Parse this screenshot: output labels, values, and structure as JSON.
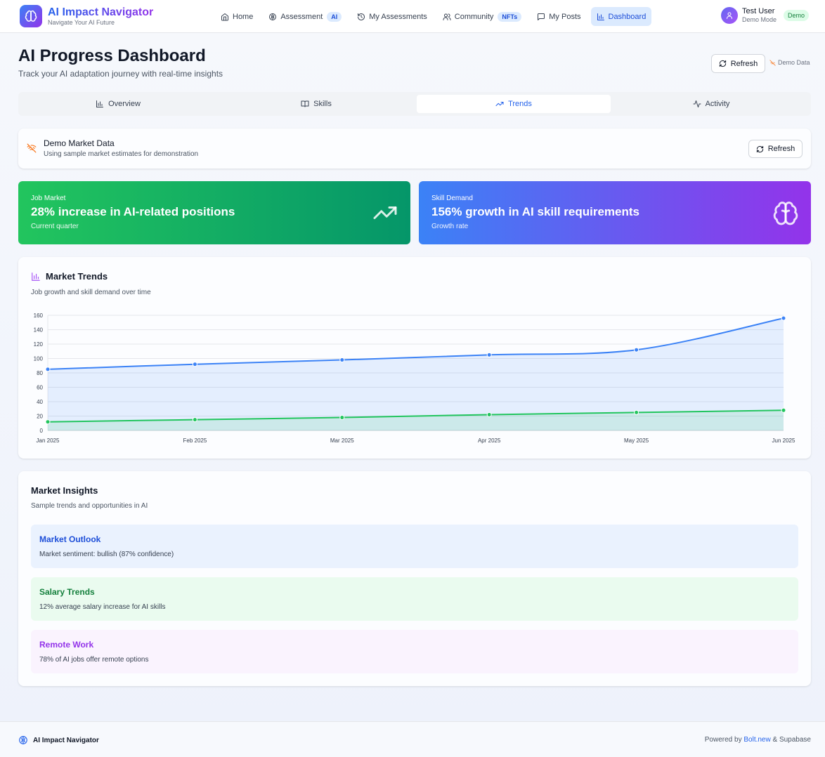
{
  "header": {
    "title": "AI Impact Navigator",
    "subtitle": "Navigate Your AI Future",
    "nav": [
      {
        "label": "Home",
        "icon": "home-icon"
      },
      {
        "label": "Assessment",
        "icon": "brain-icon",
        "badge": "AI"
      },
      {
        "label": "My Assessments",
        "icon": "history-icon"
      },
      {
        "label": "Community",
        "icon": "users-icon",
        "badge": "NFTs"
      },
      {
        "label": "My Posts",
        "icon": "message-icon"
      },
      {
        "label": "Dashboard",
        "icon": "bar-chart-icon",
        "active": true
      }
    ],
    "user": {
      "name": "Test User",
      "mode": "Demo Mode",
      "badge": "Demo"
    }
  },
  "page": {
    "title": "AI Progress Dashboard",
    "subtitle": "Track your AI adaptation journey with real-time insights",
    "refresh_label": "Refresh",
    "demo_data_label": "Demo Data"
  },
  "tabs": [
    {
      "label": "Overview",
      "icon": "bar-chart-icon"
    },
    {
      "label": "Skills",
      "icon": "book-icon"
    },
    {
      "label": "Trends",
      "icon": "trending-up-icon",
      "active": true
    },
    {
      "label": "Activity",
      "icon": "activity-icon"
    }
  ],
  "demo_notice": {
    "title": "Demo Market Data",
    "description": "Using sample market estimates for demonstration",
    "refresh_label": "Refresh"
  },
  "stats": [
    {
      "label": "Job Market",
      "value": "28% increase in AI-related positions",
      "note": "Current quarter",
      "icon": "trending-up-icon",
      "color": "#16a34a"
    },
    {
      "label": "Skill Demand",
      "value": "156% growth in AI skill requirements",
      "note": "Growth rate",
      "icon": "brain-icon",
      "color": "#7c3aed"
    }
  ],
  "market_trends": {
    "title": "Market Trends",
    "subtitle": "Job growth and skill demand over time"
  },
  "chart_data": {
    "type": "area",
    "categories": [
      "Jan 2025",
      "Feb 2025",
      "Mar 2025",
      "Apr 2025",
      "May 2025",
      "Jun 2025"
    ],
    "series": [
      {
        "values": [
          85,
          92,
          98,
          105,
          112,
          156
        ],
        "color": "#3b82f6"
      },
      {
        "values": [
          12,
          15,
          18,
          22,
          25,
          28
        ],
        "color": "#22c55e"
      }
    ],
    "yticks": [
      0,
      20,
      40,
      60,
      80,
      100,
      120,
      140,
      160
    ],
    "ylim": [
      0,
      160
    ],
    "grid": true
  },
  "insights": {
    "title": "Market Insights",
    "subtitle": "Sample trends and opportunities in AI",
    "items": [
      {
        "title": "Market Outlook",
        "description": "Market sentiment: bullish (87% confidence)"
      },
      {
        "title": "Salary Trends",
        "description": "12% average salary increase for AI skills"
      },
      {
        "title": "Remote Work",
        "description": "78% of AI jobs offer remote options"
      }
    ]
  },
  "footer": {
    "brand": "AI Impact Navigator",
    "powered_prefix": "Powered by",
    "powered_link": "Bolt.new",
    "powered_suffix": "& Supabase"
  }
}
